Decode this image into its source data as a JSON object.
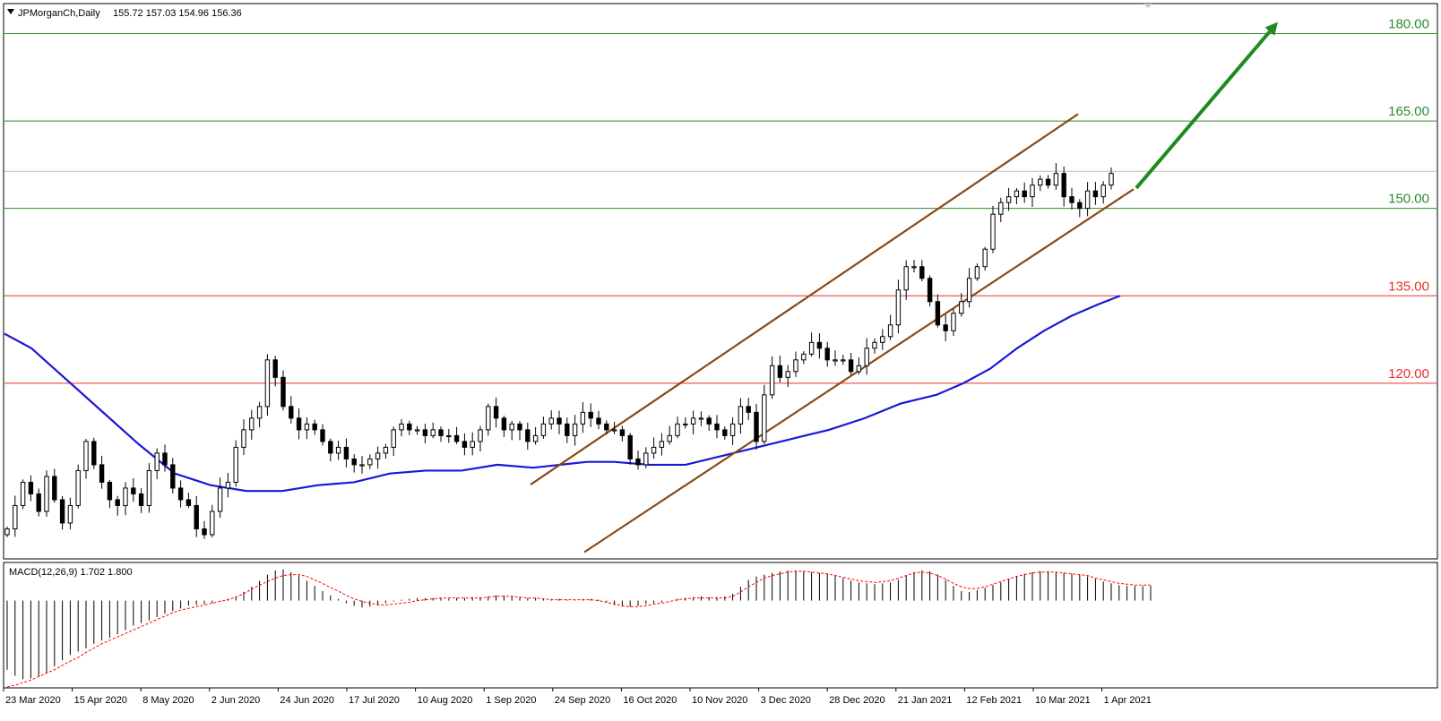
{
  "window": {
    "symbol": "JPMorganCh,Daily",
    "ohlc": "155.72 157.03 154.96 156.36"
  },
  "chart_data": [
    {
      "type": "candlestick",
      "title": "JPMorganCh,Daily",
      "ylim": [
        90,
        185
      ],
      "levels": [
        {
          "value": 180,
          "label": "180.00",
          "color": "#2e8b2e"
        },
        {
          "value": 165,
          "label": "165.00",
          "color": "#2e8b2e"
        },
        {
          "value": 150,
          "label": "150.00",
          "color": "#2e8b2e"
        },
        {
          "value": 135,
          "label": "135.00",
          "color": "#e8312a"
        },
        {
          "value": 120,
          "label": "120.00",
          "color": "#e8312a"
        }
      ],
      "last_price": 156.36,
      "x_ticks": [
        "23 Mar 2020",
        "15 Apr 2020",
        "8 May 2020",
        "2 Jun 2020",
        "24 Jun 2020",
        "17 Jul 2020",
        "10 Aug 2020",
        "1 Sep 2020",
        "24 Sep 2020",
        "16 Oct 2020",
        "10 Nov 2020",
        "3 Dec 2020",
        "28 Dec 2020",
        "21 Jan 2021",
        "12 Feb 2021",
        "10 Mar 2021",
        "1 Apr 2021"
      ],
      "close_series": [
        95,
        99,
        103,
        101,
        98,
        104,
        100,
        96,
        99,
        105,
        110,
        106,
        103,
        100,
        99,
        102,
        101,
        99,
        105,
        108,
        106,
        102,
        100,
        99,
        95,
        94,
        98,
        102,
        103,
        109,
        112,
        114,
        116,
        124,
        121,
        116,
        114,
        112,
        113,
        112,
        110,
        108,
        109,
        107,
        106,
        106,
        107,
        108,
        109,
        112,
        113,
        112,
        112,
        111,
        112,
        111,
        111,
        110,
        109,
        110,
        112,
        116,
        114,
        112,
        113,
        112,
        110,
        111,
        113,
        114,
        113,
        111,
        113,
        115,
        114,
        113,
        112,
        112,
        111,
        107,
        106,
        108,
        109,
        110,
        111,
        113,
        113,
        114,
        114,
        113,
        112,
        111,
        113,
        116,
        115,
        110,
        118,
        123,
        121,
        122,
        124,
        125,
        127,
        126,
        124,
        124,
        124,
        122,
        123,
        126,
        127,
        128,
        130,
        136,
        140,
        140,
        138,
        134,
        130,
        129,
        132,
        134,
        138,
        140,
        143,
        149,
        151,
        152,
        153,
        152,
        154,
        155,
        154,
        156,
        152,
        151,
        150,
        153,
        152,
        154,
        156
      ],
      "moving_average": {
        "color": "#1818d8",
        "values": [
          [
            0,
            128.5
          ],
          [
            30,
            126
          ],
          [
            70,
            120.5
          ],
          [
            110,
            115
          ],
          [
            150,
            109.5
          ],
          [
            190,
            104.5
          ],
          [
            230,
            102.5
          ],
          [
            270,
            101.5
          ],
          [
            310,
            101.5
          ],
          [
            350,
            102.5
          ],
          [
            390,
            103
          ],
          [
            430,
            104.5
          ],
          [
            470,
            105
          ],
          [
            510,
            105
          ],
          [
            550,
            106
          ],
          [
            590,
            105.5
          ],
          [
            620,
            106
          ],
          [
            650,
            106.5
          ],
          [
            680,
            106.5
          ],
          [
            720,
            106
          ],
          [
            760,
            106
          ],
          [
            800,
            107.5
          ],
          [
            840,
            109
          ],
          [
            880,
            110.5
          ],
          [
            920,
            112
          ],
          [
            960,
            114
          ],
          [
            1000,
            116.5
          ],
          [
            1040,
            118
          ],
          [
            1070,
            120
          ],
          [
            1100,
            122.5
          ],
          [
            1130,
            126
          ],
          [
            1160,
            129
          ],
          [
            1190,
            131.5
          ],
          [
            1220,
            133.5
          ],
          [
            1245,
            135
          ]
        ]
      },
      "channel": {
        "color": "#8b4a16",
        "upper": [
          [
            592,
            102.6
          ],
          [
            1203,
            166.2
          ]
        ],
        "lower": [
          [
            652,
            91
          ],
          [
            1265,
            153.3
          ]
        ]
      },
      "arrow": {
        "color": "#1f8a1f",
        "start": [
          1268,
          153.5
        ],
        "end": [
          1426,
          182
        ]
      }
    },
    {
      "type": "bar",
      "title": "MACD(12,26,9) 1.702 1.800",
      "histogram": [
        -8,
        -8.7,
        -9.1,
        -9.0,
        -8.8,
        -8.4,
        -7.6,
        -6.9,
        -6.3,
        -5.9,
        -5.5,
        -5.0,
        -4.6,
        -4.3,
        -3.9,
        -3.4,
        -2.9,
        -2.6,
        -2.3,
        -1.9,
        -1.5,
        -1.2,
        -0.9,
        -0.6,
        -0.5,
        -0.4,
        -0.3,
        -0.1,
        0.2,
        0.5,
        1.0,
        1.6,
        2.3,
        3.0,
        3.5,
        3.6,
        3.3,
        2.9,
        2.3,
        1.7,
        1.1,
        0.6,
        0.2,
        -0.3,
        -0.6,
        -0.8,
        -0.7,
        -0.5,
        -0.3,
        -0.1,
        0.1,
        0.2,
        0.3,
        0.3,
        0.3,
        0.3,
        0.2,
        0.3,
        0.3,
        0.4,
        0.4,
        0.5,
        0.6,
        0.6,
        0.5,
        0.4,
        0.3,
        0.3,
        0.2,
        0.2,
        0.2,
        0.1,
        0.1,
        0.2,
        0.2,
        0.1,
        -0.2,
        -0.5,
        -0.7,
        -0.7,
        -0.6,
        -0.4,
        -0.3,
        -0.2,
        0.0,
        0.2,
        0.3,
        0.4,
        0.5,
        0.4,
        0.4,
        0.5,
        0.8,
        1.6,
        2.4,
        2.8,
        3.0,
        3.2,
        3.4,
        3.5,
        3.5,
        3.4,
        3.3,
        3.2,
        3.1,
        2.9,
        2.6,
        2.3,
        2.1,
        2.0,
        1.9,
        2.0,
        2.1,
        2.4,
        2.9,
        3.3,
        3.5,
        3.4,
        3.0,
        2.4,
        1.7,
        1.1,
        1.0,
        1.2,
        1.5,
        1.8,
        2.1,
        2.5,
        2.8,
        3.1,
        3.3,
        3.4,
        3.4,
        3.3,
        3.2,
        3.1,
        3.0,
        2.8,
        2.5,
        2.2,
        2.0,
        1.8,
        1.7,
        1.7,
        1.7,
        1.7
      ],
      "signal": [
        -10.0,
        -9.8,
        -9.5,
        -9.2,
        -8.8,
        -8.4,
        -8.0,
        -7.5,
        -7.0,
        -6.6,
        -6.0,
        -5.5,
        -5.0,
        -4.6,
        -4.2,
        -3.8,
        -3.4,
        -3.0,
        -2.6,
        -2.2,
        -1.8,
        -1.4,
        -1.1,
        -0.9,
        -0.7,
        -0.5,
        -0.3,
        -0.1,
        0.1,
        0.4,
        0.8,
        1.3,
        1.8,
        2.2,
        2.6,
        2.9,
        3.0,
        3.0,
        2.8,
        2.4,
        2.0,
        1.5,
        1.1,
        0.6,
        0.2,
        -0.1,
        -0.3,
        -0.5,
        -0.5,
        -0.4,
        -0.3,
        -0.2,
        0.0,
        0.1,
        0.2,
        0.3,
        0.3,
        0.3,
        0.3,
        0.3,
        0.3,
        0.4,
        0.5,
        0.5,
        0.5,
        0.4,
        0.3,
        0.3,
        0.2,
        0.1,
        0.1,
        0.1,
        0.1,
        0.1,
        0.1,
        0.0,
        -0.2,
        -0.4,
        -0.6,
        -0.7,
        -0.7,
        -0.6,
        -0.4,
        -0.3,
        -0.1,
        0.1,
        0.2,
        0.3,
        0.3,
        0.3,
        0.3,
        0.3,
        0.5,
        1.0,
        1.6,
        2.1,
        2.6,
        2.9,
        3.1,
        3.3,
        3.4,
        3.4,
        3.3,
        3.2,
        3.1,
        2.9,
        2.7,
        2.5,
        2.3,
        2.2,
        2.1,
        2.2,
        2.3,
        2.6,
        2.9,
        3.2,
        3.3,
        3.2,
        2.9,
        2.5,
        2.0,
        1.6,
        1.4,
        1.4,
        1.6,
        1.9,
        2.2,
        2.5,
        2.8,
        3.0,
        3.2,
        3.3,
        3.3,
        3.3,
        3.2,
        3.1,
        3.0,
        2.9,
        2.6,
        2.4,
        2.2,
        2.0,
        1.9,
        1.8,
        1.8,
        1.8
      ],
      "signal_color": "#ff0000",
      "ylim": [
        -10,
        4
      ]
    }
  ]
}
